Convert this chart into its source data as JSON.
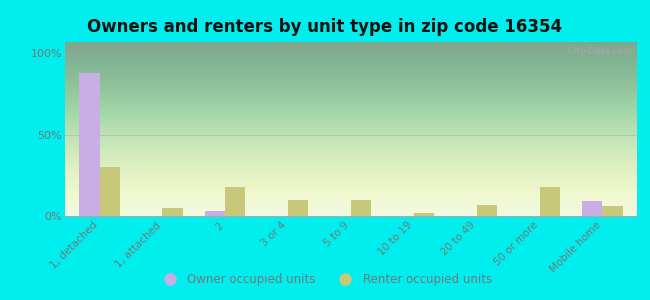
{
  "title": "Owners and renters by unit type in zip code 16354",
  "categories": [
    "1, detached",
    "1, attached",
    "2",
    "3 or 4",
    "5 to 9",
    "10 to 19",
    "20 to 49",
    "50 or more",
    "Mobile home"
  ],
  "owner_values": [
    88,
    0,
    3,
    0,
    0,
    0,
    0,
    0,
    9
  ],
  "renter_values": [
    30,
    5,
    18,
    10,
    10,
    2,
    7,
    18,
    6
  ],
  "owner_color": "#c9aee5",
  "renter_color": "#c8c87a",
  "outer_bg": "#00eeee",
  "plot_bg_top": "#d0e8c0",
  "plot_bg_bottom": "#f8fff0",
  "yticks": [
    0,
    50,
    100
  ],
  "ytick_labels": [
    "0%",
    "50%",
    "100%"
  ],
  "ylim": [
    0,
    107
  ],
  "bar_width": 0.32,
  "legend_owner": "Owner occupied units",
  "legend_renter": "Renter occupied units",
  "watermark": "  City-Data.com",
  "tick_color": "#777777",
  "title_fontsize": 12,
  "axis_label_fontsize": 7.5,
  "ytick_fontsize": 8
}
